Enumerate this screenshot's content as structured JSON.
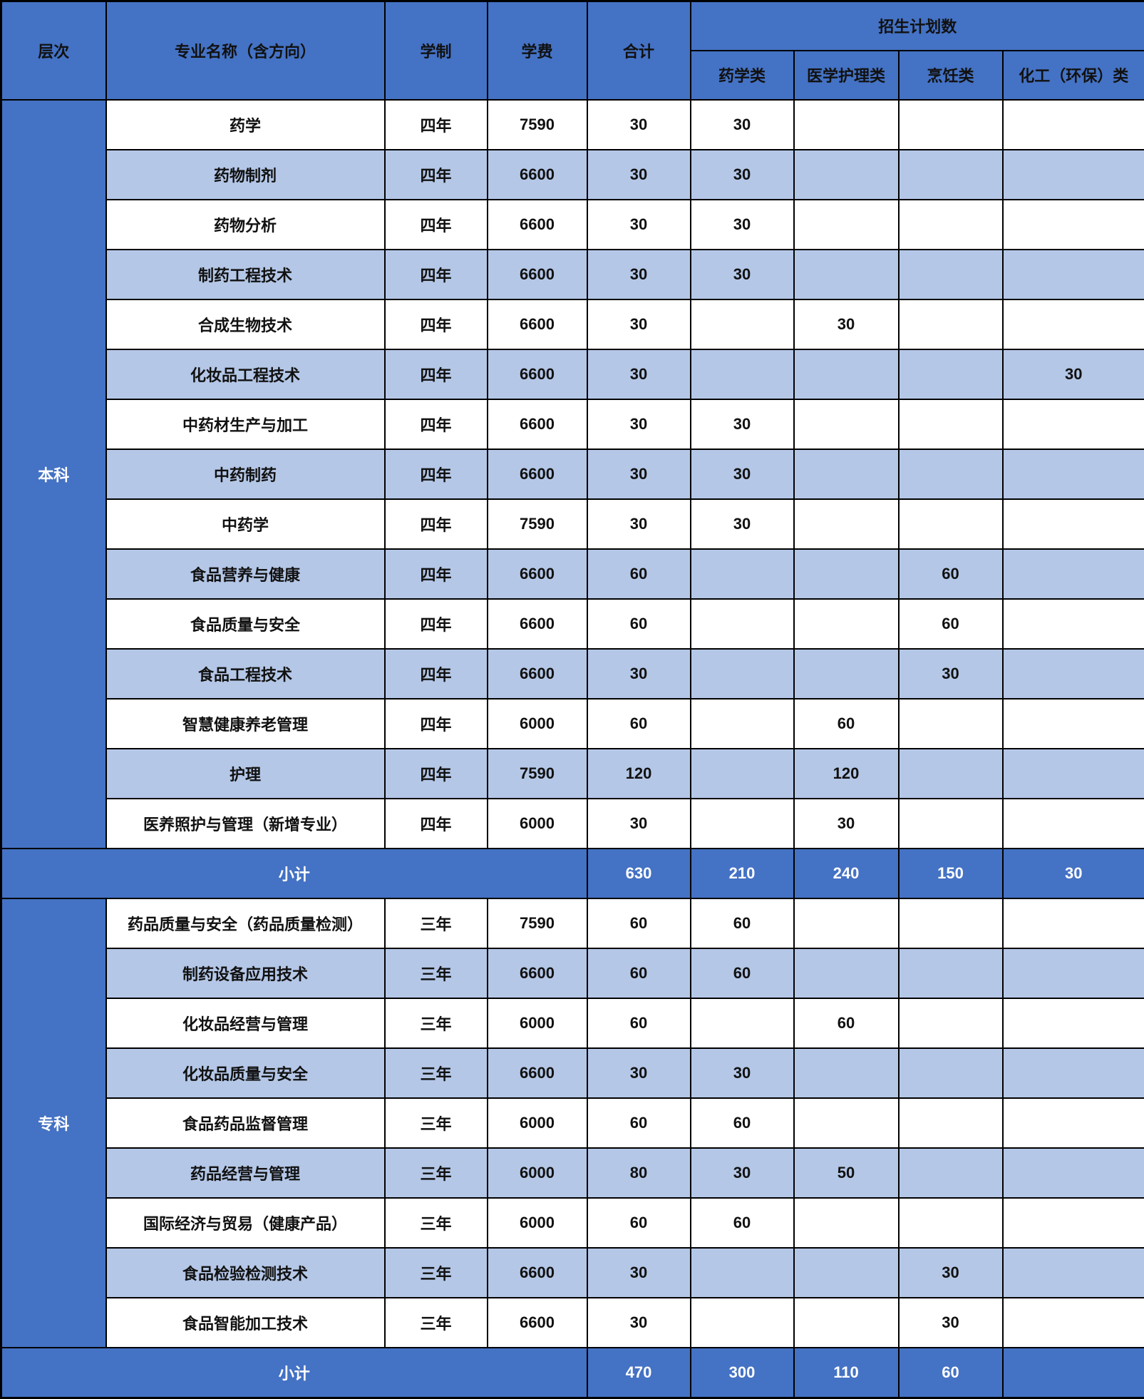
{
  "colors": {
    "header_blue": "#4472C4",
    "row_light": "#B4C7E7",
    "row_white": "#FFFFFF",
    "border": "#000000",
    "header_text": "#FFFFFF",
    "body_text": "#111111"
  },
  "header": {
    "level": "层次",
    "major": "专业名称（含方向）",
    "duration": "学制",
    "tuition": "学费",
    "total": "合计",
    "plan_group": "招生计划数",
    "categories": [
      "药学类",
      "医学护理类",
      "烹饪类",
      "化工（环保）类"
    ]
  },
  "sections": [
    {
      "level": "本科",
      "rows": [
        {
          "major": "药学",
          "duration": "四年",
          "tuition": "7590",
          "total": "30",
          "c": [
            "30",
            "",
            "",
            ""
          ]
        },
        {
          "major": "药物制剂",
          "duration": "四年",
          "tuition": "6600",
          "total": "30",
          "c": [
            "30",
            "",
            "",
            ""
          ]
        },
        {
          "major": "药物分析",
          "duration": "四年",
          "tuition": "6600",
          "total": "30",
          "c": [
            "30",
            "",
            "",
            ""
          ]
        },
        {
          "major": "制药工程技术",
          "duration": "四年",
          "tuition": "6600",
          "total": "30",
          "c": [
            "30",
            "",
            "",
            ""
          ]
        },
        {
          "major": "合成生物技术",
          "duration": "四年",
          "tuition": "6600",
          "total": "30",
          "c": [
            "",
            "30",
            "",
            ""
          ]
        },
        {
          "major": "化妆品工程技术",
          "duration": "四年",
          "tuition": "6600",
          "total": "30",
          "c": [
            "",
            "",
            "",
            "30"
          ]
        },
        {
          "major": "中药材生产与加工",
          "duration": "四年",
          "tuition": "6600",
          "total": "30",
          "c": [
            "30",
            "",
            "",
            ""
          ]
        },
        {
          "major": "中药制药",
          "duration": "四年",
          "tuition": "6600",
          "total": "30",
          "c": [
            "30",
            "",
            "",
            ""
          ]
        },
        {
          "major": "中药学",
          "duration": "四年",
          "tuition": "7590",
          "total": "30",
          "c": [
            "30",
            "",
            "",
            ""
          ]
        },
        {
          "major": "食品营养与健康",
          "duration": "四年",
          "tuition": "6600",
          "total": "60",
          "c": [
            "",
            "",
            "60",
            ""
          ]
        },
        {
          "major": "食品质量与安全",
          "duration": "四年",
          "tuition": "6600",
          "total": "60",
          "c": [
            "",
            "",
            "60",
            ""
          ]
        },
        {
          "major": "食品工程技术",
          "duration": "四年",
          "tuition": "6600",
          "total": "30",
          "c": [
            "",
            "",
            "30",
            ""
          ]
        },
        {
          "major": "智慧健康养老管理",
          "duration": "四年",
          "tuition": "6000",
          "total": "60",
          "c": [
            "",
            "60",
            "",
            ""
          ]
        },
        {
          "major": "护理",
          "duration": "四年",
          "tuition": "7590",
          "total": "120",
          "c": [
            "",
            "120",
            "",
            ""
          ]
        },
        {
          "major": "医养照护与管理（新增专业）",
          "duration": "四年",
          "tuition": "6000",
          "total": "30",
          "c": [
            "",
            "30",
            "",
            ""
          ]
        }
      ],
      "subtotal": {
        "label": "小计",
        "total": "630",
        "c": [
          "210",
          "240",
          "150",
          "30"
        ]
      }
    },
    {
      "level": "专科",
      "rows": [
        {
          "major": "药品质量与安全（药品质量检测）",
          "duration": "三年",
          "tuition": "7590",
          "total": "60",
          "c": [
            "60",
            "",
            "",
            ""
          ]
        },
        {
          "major": "制药设备应用技术",
          "duration": "三年",
          "tuition": "6600",
          "total": "60",
          "c": [
            "60",
            "",
            "",
            ""
          ]
        },
        {
          "major": "化妆品经营与管理",
          "duration": "三年",
          "tuition": "6000",
          "total": "60",
          "c": [
            "",
            "60",
            "",
            ""
          ]
        },
        {
          "major": "化妆品质量与安全",
          "duration": "三年",
          "tuition": "6600",
          "total": "30",
          "c": [
            "30",
            "",
            "",
            ""
          ]
        },
        {
          "major": "食品药品监督管理",
          "duration": "三年",
          "tuition": "6000",
          "total": "60",
          "c": [
            "60",
            "",
            "",
            ""
          ]
        },
        {
          "major": "药品经营与管理",
          "duration": "三年",
          "tuition": "6000",
          "total": "80",
          "c": [
            "30",
            "50",
            "",
            ""
          ]
        },
        {
          "major": "国际经济与贸易（健康产品）",
          "duration": "三年",
          "tuition": "6000",
          "total": "60",
          "c": [
            "60",
            "",
            "",
            ""
          ]
        },
        {
          "major": "食品检验检测技术",
          "duration": "三年",
          "tuition": "6600",
          "total": "30",
          "c": [
            "",
            "",
            "30",
            ""
          ]
        },
        {
          "major": "食品智能加工技术",
          "duration": "三年",
          "tuition": "6600",
          "total": "30",
          "c": [
            "",
            "",
            "30",
            ""
          ]
        }
      ],
      "subtotal": {
        "label": "小计",
        "total": "470",
        "c": [
          "300",
          "110",
          "60",
          ""
        ]
      }
    }
  ]
}
